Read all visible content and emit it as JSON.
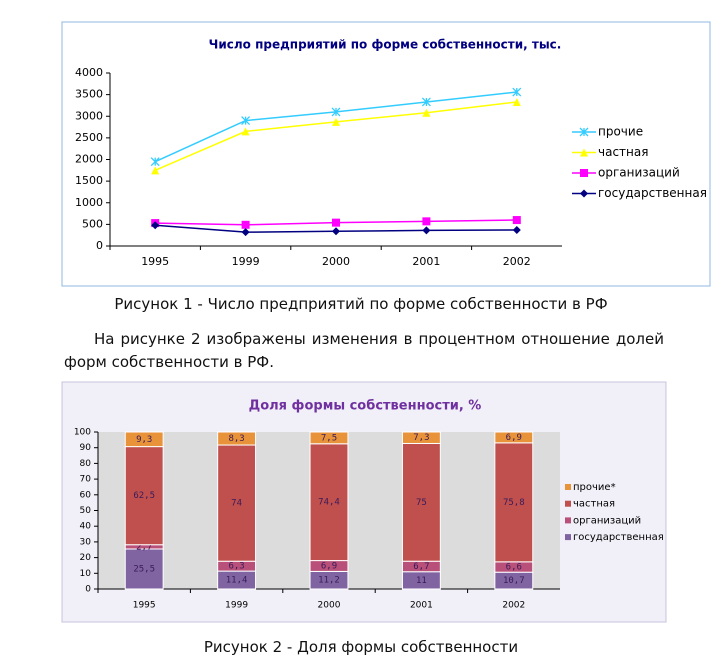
{
  "chart_data": [
    {
      "type": "line",
      "title": "Число предприятий по форме собственности, тыс.",
      "categories": [
        "1995",
        "1999",
        "2000",
        "2001",
        "2002"
      ],
      "series": [
        {
          "name": "прочие",
          "color": "#33ccff",
          "marker": "star",
          "values": [
            1950,
            2900,
            3100,
            3330,
            3560
          ]
        },
        {
          "name": "частная",
          "color": "#ffff00",
          "marker": "triangle",
          "values": [
            1750,
            2650,
            2870,
            3080,
            3330
          ]
        },
        {
          "name": "организаций",
          "color": "#ff00ff",
          "marker": "square",
          "values": [
            530,
            490,
            540,
            570,
            600
          ]
        },
        {
          "name": "государственная",
          "color": "#000080",
          "marker": "diamond",
          "values": [
            480,
            320,
            340,
            360,
            370
          ]
        }
      ],
      "ylim": [
        0,
        4000
      ],
      "yticks": [
        0,
        500,
        1000,
        1500,
        2000,
        2500,
        3000,
        3500,
        4000
      ],
      "grid": false,
      "legend": "right"
    },
    {
      "type": "stacked-bar",
      "title": "Доля формы собственности, %",
      "categories": [
        "1995",
        "1999",
        "2000",
        "2001",
        "2002"
      ],
      "series": [
        {
          "name": "государственная",
          "color": "#8064a2",
          "values": [
            25.5,
            11.4,
            11.2,
            11,
            10.7
          ],
          "value_labels": [
            "25,5",
            "11,4",
            "11,2",
            "11",
            "10,7"
          ]
        },
        {
          "name": "организаций",
          "color": "#b8507a",
          "values": [
            2.7,
            6.3,
            6.9,
            6.7,
            6.6
          ],
          "value_labels": [
            "2,7",
            "6,3",
            "6,9",
            "6,7",
            "6,6"
          ]
        },
        {
          "name": "частная",
          "color": "#c0504d",
          "values": [
            62.5,
            74,
            74.4,
            75,
            75.8
          ],
          "value_labels": [
            "62,5",
            "74",
            "74,4",
            "75",
            "75,8"
          ]
        },
        {
          "name": "прочие*",
          "color": "#e8923a",
          "values": [
            9.3,
            8.3,
            7.5,
            7.3,
            6.9
          ],
          "value_labels": [
            "9,3",
            "8,3",
            "7,5",
            "7,3",
            "6,9"
          ]
        }
      ],
      "ylim": [
        0,
        100
      ],
      "yticks": [
        0,
        10,
        20,
        30,
        40,
        50,
        60,
        70,
        80,
        90,
        100
      ],
      "grid": false,
      "legend": "right"
    }
  ],
  "captions": [
    "Рисунок 1 - Число предприятий по форме собственности в РФ",
    "Рисунок 2 - Доля формы собственности"
  ],
  "paragraph": "На рисунке 2 изображены изменения в процентном отношение долей форм собственности в РФ."
}
